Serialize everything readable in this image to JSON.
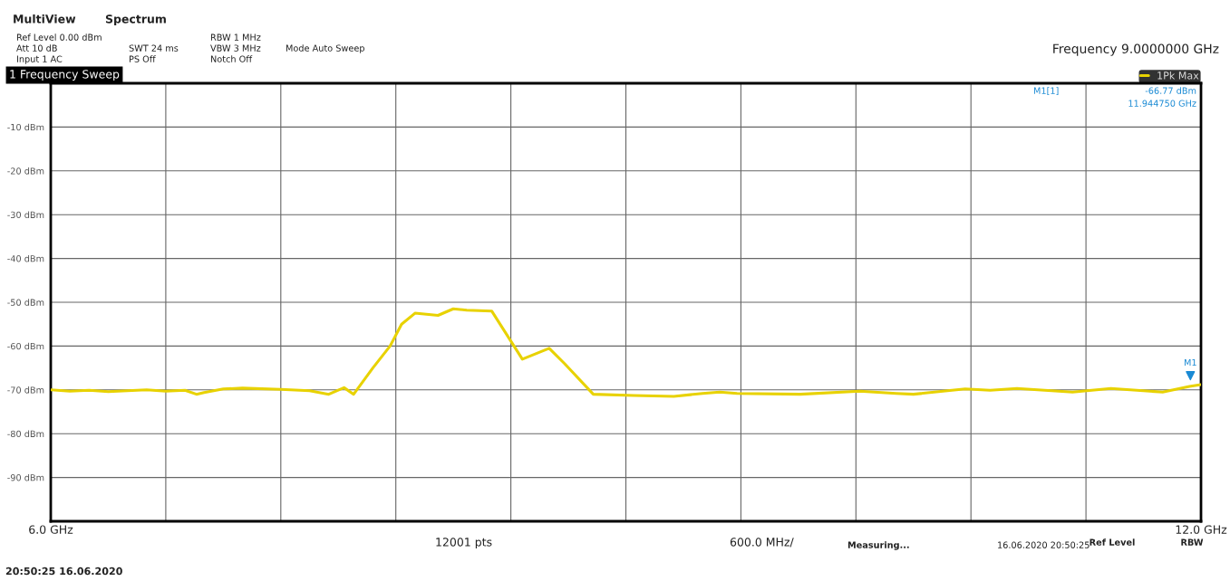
{
  "chart_data": {
    "type": "line",
    "title": "1 Frequency Sweep",
    "x": [
      6.0,
      6.1,
      6.2,
      6.3,
      6.4,
      6.5,
      6.6,
      6.7,
      6.76,
      6.8,
      6.9,
      7.0,
      7.2,
      7.35,
      7.45,
      7.53,
      7.58,
      7.68,
      7.77,
      7.83,
      7.9,
      8.02,
      8.1,
      8.17,
      8.3,
      8.46,
      8.6,
      8.68,
      8.83,
      9.04,
      9.25,
      9.4,
      9.49,
      9.58,
      9.91,
      10.22,
      10.41,
      10.5,
      10.77,
      10.9,
      11.04,
      11.33,
      11.53,
      11.8,
      11.94,
      12.0
    ],
    "series": [
      {
        "name": "1Pk Max",
        "color": "#e8d200",
        "values": [
          -70.0,
          -70.3,
          -70.1,
          -70.4,
          -70.2,
          -70.0,
          -70.3,
          -70.1,
          -71.0,
          -70.6,
          -69.8,
          -69.6,
          -69.9,
          -70.2,
          -71.0,
          -69.5,
          -71.0,
          -65.0,
          -60.0,
          -55.0,
          -52.5,
          -53.0,
          -51.5,
          -51.8,
          -52.0,
          -63.0,
          -60.5,
          -64.0,
          -71.0,
          -71.3,
          -71.5,
          -70.8,
          -70.5,
          -70.8,
          -71.0,
          -70.3,
          -70.8,
          -71.0,
          -69.8,
          -70.1,
          -69.7,
          -70.5,
          -69.7,
          -70.5,
          -69.2,
          -68.8
        ]
      },
      {
        "name": "M1",
        "type": "scatter",
        "marker": "triangle",
        "color": "#1a8ad4",
        "x": [
          11.94475
        ],
        "values": [
          -66.77
        ]
      }
    ],
    "xlim": [
      6.0,
      12.0
    ],
    "xticks": [
      {
        "value": 6.0,
        "label": "6.0 GHz"
      },
      {
        "value": 6.6,
        "label": null
      },
      {
        "value": 7.2,
        "label": null
      },
      {
        "value": 7.8,
        "label": null
      },
      {
        "value": 8.4,
        "label": null
      },
      {
        "value": 9.0,
        "label": null
      },
      {
        "value": 9.6,
        "label": null
      },
      {
        "value": 10.2,
        "label": null
      },
      {
        "value": 10.8,
        "label": null
      },
      {
        "value": 11.4,
        "label": null
      },
      {
        "value": 12.0,
        "label": "12.0 GHz"
      }
    ],
    "ylim": [
      -100,
      0
    ],
    "yticks": [
      {
        "value": -10,
        "label": "-10 dBm"
      },
      {
        "value": -20,
        "label": "-20 dBm"
      },
      {
        "value": -30,
        "label": "-30 dBm"
      },
      {
        "value": -40,
        "label": "-40 dBm"
      },
      {
        "value": -50,
        "label": "-50 dBm"
      },
      {
        "value": -60,
        "label": "-60 dBm"
      },
      {
        "value": -70,
        "label": "-70 dBm"
      },
      {
        "value": -80,
        "label": "-80 dBm"
      },
      {
        "value": -90,
        "label": "-90 dBm"
      }
    ],
    "grid": true,
    "legend": "top right",
    "line_style": "solid",
    "marker": "none",
    "annotations": [
      "MultiView",
      "Spectrum",
      "Ref Level 0.00 dBm",
      "Att 10 dB",
      "Input 1 AC",
      "SWT 24 ms",
      "PS Off",
      "RBW 1 MHz",
      "VBW 3 MHz",
      "Notch Off",
      "Mode Auto Sweep",
      "Frequency 9.0000000 GHz",
      "M1[1]",
      "-66.77 dBm",
      "11.944750 GHz",
      "12001 pts",
      "600.0 MHz/",
      "Measuring...",
      "16.06.2020 20:50:25",
      "Ref Level",
      "RBW",
      "20:50:25 16.06.2020"
    ]
  }
}
